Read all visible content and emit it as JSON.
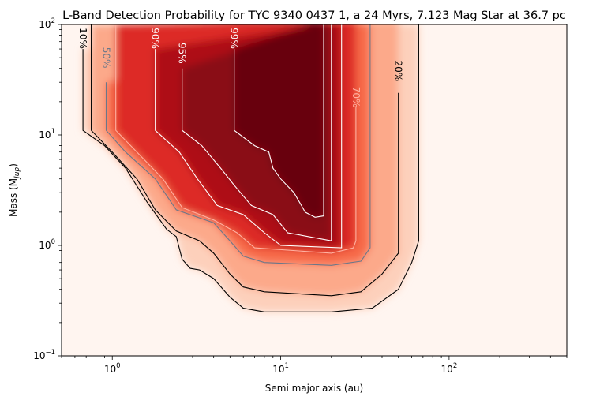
{
  "chart_data": {
    "type": "heatmap",
    "title": "L-Band Detection Probability for TYC 9340 0437 1, a 24 Myrs, 7.123 Mag Star at 36.7 pc",
    "xlabel": "Semi major axis (au)",
    "ylabel_main": "Mass (M",
    "ylabel_sub": "Jup",
    "ylabel_close": ")",
    "x_scale": "log",
    "y_scale": "log",
    "xlim": [
      0.5,
      500
    ],
    "ylim": [
      0.1,
      100
    ],
    "colormap": "Reds",
    "grid": false,
    "x_ticks": [
      {
        "value": 1,
        "base": "10",
        "exp": "0"
      },
      {
        "value": 10,
        "base": "10",
        "exp": "1"
      },
      {
        "value": 100,
        "base": "10",
        "exp": "2"
      }
    ],
    "y_ticks": [
      {
        "value": 0.1,
        "base": "10",
        "exp": "−1"
      },
      {
        "value": 1,
        "base": "10",
        "exp": "0"
      },
      {
        "value": 10,
        "base": "10",
        "exp": "1"
      },
      {
        "value": 100,
        "base": "10",
        "exp": "2"
      }
    ],
    "contours": [
      {
        "level": "10%",
        "color": "#000000",
        "points": [
          [
            0.67,
            60
          ],
          [
            0.67,
            11
          ],
          [
            0.9,
            8
          ],
          [
            1.2,
            5
          ],
          [
            1.6,
            2.5
          ],
          [
            2.1,
            1.4
          ],
          [
            2.4,
            1.2
          ],
          [
            2.6,
            0.75
          ],
          [
            2.9,
            0.62
          ],
          [
            3.3,
            0.6
          ],
          [
            4,
            0.5
          ],
          [
            5,
            0.34
          ],
          [
            6,
            0.27
          ],
          [
            8,
            0.25
          ],
          [
            20,
            0.25
          ],
          [
            35,
            0.27
          ],
          [
            50,
            0.4
          ],
          [
            60,
            0.7
          ],
          [
            66,
            1.1
          ],
          [
            66,
            100
          ]
        ],
        "label": {
          "text": "10%",
          "at": [
            0.67,
            75
          ],
          "rotation": 90,
          "color": "#000000"
        }
      },
      {
        "level": "20%",
        "color": "#000000",
        "points": [
          [
            0.75,
            100
          ],
          [
            0.75,
            11
          ],
          [
            1,
            7
          ],
          [
            1.4,
            4
          ],
          [
            1.8,
            2.1
          ],
          [
            2.4,
            1.35
          ],
          [
            3.3,
            1.1
          ],
          [
            4,
            0.85
          ],
          [
            5,
            0.55
          ],
          [
            6,
            0.42
          ],
          [
            8,
            0.38
          ],
          [
            20,
            0.35
          ],
          [
            30,
            0.38
          ],
          [
            40,
            0.55
          ],
          [
            50,
            0.85
          ],
          [
            50,
            24
          ]
        ],
        "label": {
          "text": "20%",
          "at": [
            50,
            38
          ],
          "rotation": 90,
          "color": "#000000"
        }
      },
      {
        "level": "50%",
        "color": "#6b7789",
        "points": [
          [
            0.92,
            30
          ],
          [
            0.92,
            11
          ],
          [
            1.2,
            7
          ],
          [
            1.8,
            4
          ],
          [
            2.4,
            2.1
          ],
          [
            4,
            1.6
          ],
          [
            5,
            1.1
          ],
          [
            6,
            0.8
          ],
          [
            8,
            0.7
          ],
          [
            20,
            0.66
          ],
          [
            30,
            0.72
          ],
          [
            34,
            0.95
          ],
          [
            34,
            100
          ]
        ],
        "label": {
          "text": "50%",
          "at": [
            0.92,
            50
          ],
          "rotation": 90,
          "color": "#6b7789"
        }
      },
      {
        "level": "70%",
        "color": "#ffb0a0",
        "points": [
          [
            1.05,
            100
          ],
          [
            1.05,
            11
          ],
          [
            1.4,
            7
          ],
          [
            2,
            4
          ],
          [
            2.6,
            2.2
          ],
          [
            4,
            1.7
          ],
          [
            5.5,
            1.3
          ],
          [
            7,
            0.95
          ],
          [
            20,
            0.85
          ],
          [
            27,
            0.95
          ],
          [
            28,
            1.1
          ],
          [
            28,
            18
          ]
        ],
        "label": {
          "text": "70%",
          "at": [
            28,
            22
          ],
          "rotation": 90,
          "color": "#ffb0a0"
        }
      },
      {
        "level": "90%",
        "color": "#ffffff",
        "points": [
          [
            1.8,
            60
          ],
          [
            1.8,
            11
          ],
          [
            2.5,
            7
          ],
          [
            3.2,
            4
          ],
          [
            4.2,
            2.3
          ],
          [
            6,
            1.9
          ],
          [
            8,
            1.3
          ],
          [
            10,
            1
          ],
          [
            23,
            0.95
          ],
          [
            23,
            100
          ]
        ],
        "label": {
          "text": "90%",
          "at": [
            1.8,
            75
          ],
          "rotation": 90,
          "color": "#ffffff"
        }
      },
      {
        "level": "95%",
        "color": "#ffffff",
        "points": [
          [
            2.6,
            40
          ],
          [
            2.6,
            11
          ],
          [
            3.4,
            8
          ],
          [
            4.4,
            5
          ],
          [
            5.3,
            3.5
          ],
          [
            6.7,
            2.3
          ],
          [
            9,
            1.9
          ],
          [
            11,
            1.3
          ],
          [
            20,
            1.1
          ],
          [
            20,
            100
          ]
        ],
        "label": {
          "text": "95%",
          "at": [
            2.6,
            55
          ],
          "rotation": 90,
          "color": "#ffffff"
        }
      },
      {
        "level": "99%",
        "color": "#ffffff",
        "points": [
          [
            5.3,
            60
          ],
          [
            5.3,
            11
          ],
          [
            7,
            8
          ],
          [
            8.5,
            7
          ],
          [
            9,
            5
          ],
          [
            10,
            4
          ],
          [
            12,
            3
          ],
          [
            14,
            2
          ],
          [
            16,
            1.8
          ],
          [
            18,
            1.85
          ],
          [
            18,
            100
          ]
        ],
        "label": {
          "text": "99%",
          "at": [
            5.3,
            75
          ],
          "rotation": 90,
          "color": "#ffffff"
        }
      }
    ]
  }
}
